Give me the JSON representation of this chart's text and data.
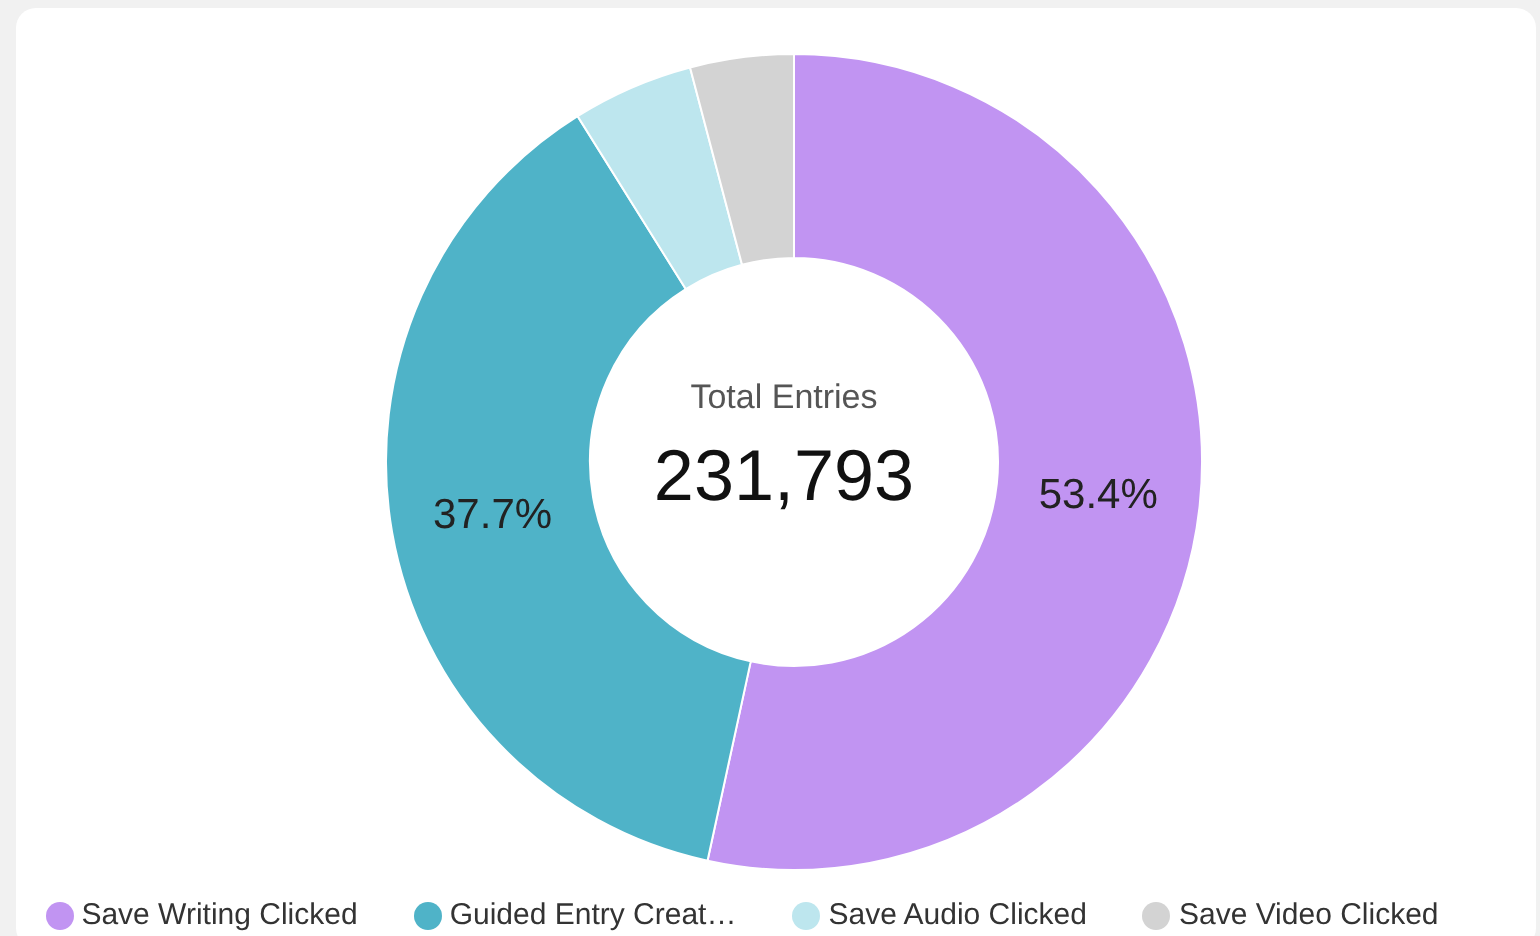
{
  "chart_data": {
    "type": "donut",
    "categories": [
      "Save Writing Clicked",
      "Guided Entry Creat…",
      "Save Audio Clicked",
      "Save Video Clicked"
    ],
    "values": [
      53.4,
      37.7,
      4.8,
      4.1
    ],
    "colors": [
      "#c194f2",
      "#4fb3c8",
      "#bde6ee",
      "#d3d3d3"
    ],
    "value_labels": [
      "53.4%",
      "37.7%",
      null,
      null
    ],
    "annotations": [
      "Total Entries",
      "231,793"
    ],
    "legend": "bottom"
  }
}
